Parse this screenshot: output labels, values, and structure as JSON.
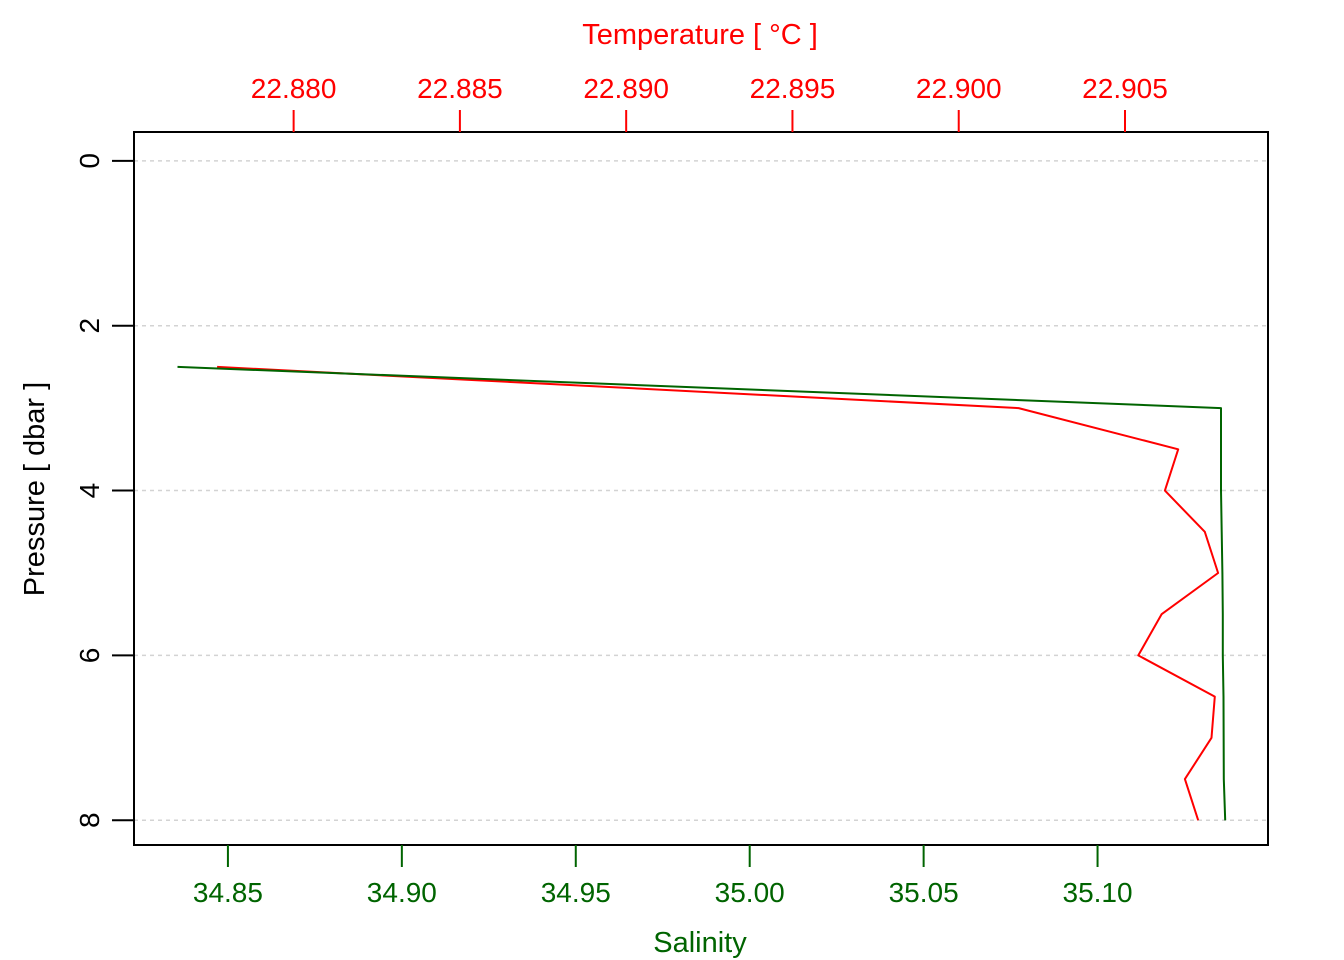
{
  "chart_data": {
    "type": "line",
    "title": "",
    "y_axis": {
      "label": "Pressure [ dbar ]",
      "range": [
        -0.35,
        8.3
      ],
      "reversed": true,
      "ticks": [
        0,
        2,
        4,
        6,
        8
      ],
      "tick_labels": [
        "0",
        "2",
        "4",
        "6",
        "8"
      ],
      "grid": true,
      "color": "#000000"
    },
    "x_bottom": {
      "label": "Salinity",
      "range": [
        34.823,
        35.149
      ],
      "ticks": [
        34.85,
        34.9,
        34.95,
        35.0,
        35.05,
        35.1
      ],
      "tick_labels": [
        "34.85",
        "34.90",
        "34.95",
        "35.00",
        "35.05",
        "35.10"
      ],
      "color": "#006400"
    },
    "x_top": {
      "label": "Temperature [ °C ]",
      "range": [
        22.8752,
        22.9093
      ],
      "ticks": [
        22.88,
        22.885,
        22.89,
        22.895,
        22.9,
        22.905
      ],
      "tick_labels": [
        "22.880",
        "22.885",
        "22.890",
        "22.895",
        "22.900",
        "22.905"
      ],
      "color": "#ff0000"
    },
    "series": [
      {
        "name": "Salinity",
        "axis": "bottom",
        "color": "#006400",
        "x": [
          34.8355,
          35.1355,
          35.1355,
          35.1355,
          35.1357,
          35.1359,
          35.136,
          35.136,
          35.1362,
          35.1363,
          35.1367
        ],
        "y": [
          2.5,
          3.0,
          3.5,
          4.0,
          4.5,
          5.0,
          5.5,
          6.0,
          6.5,
          7.5,
          8.0
        ]
      },
      {
        "name": "Temperature",
        "axis": "top",
        "color": "#ff0000",
        "x": [
          22.8777,
          22.9018,
          22.9066,
          22.9062,
          22.9074,
          22.9078,
          22.9061,
          22.9054,
          22.9077,
          22.9076,
          22.9068,
          22.9072
        ],
        "y": [
          2.5,
          3.0,
          3.5,
          4.0,
          4.5,
          5.0,
          5.5,
          6.0,
          6.5,
          7.0,
          7.5,
          8.0
        ]
      }
    ]
  }
}
